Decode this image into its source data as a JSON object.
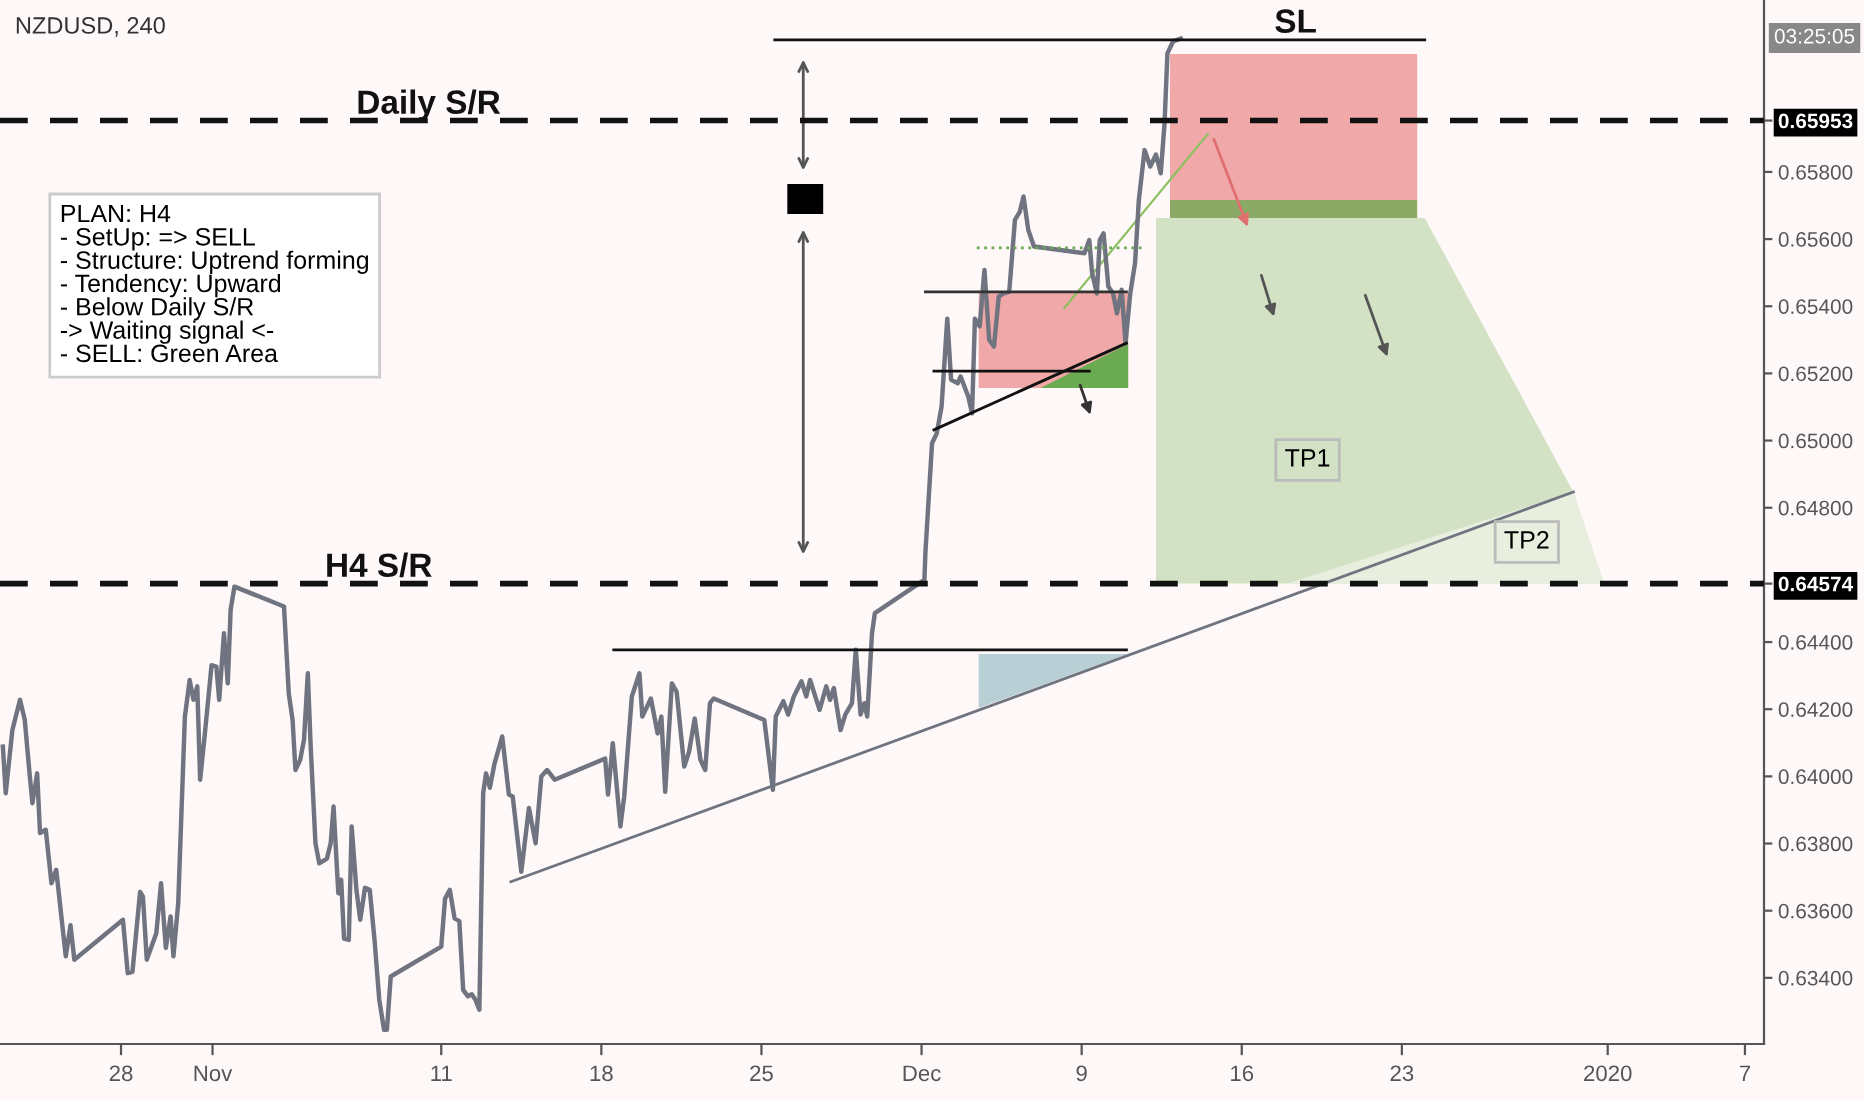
{
  "chart_data": {
    "type": "line",
    "title": "NZDUSD, 240",
    "xlim": [
      "2019-10-22T17:00",
      "2020-01-07T20:00"
    ],
    "ylim": [
      0.63203,
      0.66312
    ],
    "xticks": [
      {
        "value": "2019-10-28",
        "label": "28"
      },
      {
        "value": "2019-11-01",
        "label": "Nov"
      },
      {
        "value": "2019-11-11",
        "label": "11"
      },
      {
        "value": "2019-11-18",
        "label": "18"
      },
      {
        "value": "2019-11-25",
        "label": "25"
      },
      {
        "value": "2019-12-02",
        "label": "Dec"
      },
      {
        "value": "2019-12-09",
        "label": "9"
      },
      {
        "value": "2019-12-16",
        "label": "16"
      },
      {
        "value": "2019-12-23",
        "label": "23"
      },
      {
        "value": "2020-01-01",
        "label": "2020"
      },
      {
        "value": "2020-01-07",
        "label": "7"
      }
    ],
    "yticks": [
      {
        "value": 0.634,
        "label": "0.63400"
      },
      {
        "value": 0.636,
        "label": "0.63600"
      },
      {
        "value": 0.638,
        "label": "0.63800"
      },
      {
        "value": 0.64,
        "label": "0.64000"
      },
      {
        "value": 0.642,
        "label": "0.64200"
      },
      {
        "value": 0.644,
        "label": "0.64400"
      },
      {
        "value": 0.64574,
        "label": "0.64574"
      },
      {
        "value": 0.648,
        "label": "0.64800"
      },
      {
        "value": 0.65,
        "label": "0.65000"
      },
      {
        "value": 0.652,
        "label": "0.65200"
      },
      {
        "value": 0.654,
        "label": "0.65400"
      },
      {
        "value": 0.656,
        "label": "0.65600"
      },
      {
        "value": 0.658,
        "label": "0.65800"
      },
      {
        "value": 0.65953,
        "label": "0.65953"
      }
    ],
    "grid": false,
    "legend": false,
    "marker": "none",
    "line_style": "solid",
    "ref_lines": [
      {
        "axis": "y",
        "value": 0.65953,
        "label": "Daily S/R",
        "color": "#111111",
        "line_style": "dashed"
      },
      {
        "axis": "y",
        "value": 0.64574,
        "label": "H4 S/R",
        "color": "#111111",
        "line_style": "dashed"
      }
    ],
    "annotations": [
      "PLAN: H4\n- SetUp: => SELL\n- Structure: Uptrend forming\n- Tendency: Upward\n- Below Daily S/R\n-> Waiting signal <-\n- SELL: Green Area",
      "SL",
      "TP1",
      "TP2",
      "03:25:05"
    ],
    "series": [
      {
        "color": "#6f7480",
        "x": [
          "2019-10-22T20:00",
          "2019-10-22T23:00",
          "2019-10-23T06:00",
          "2019-10-23T14:00",
          "2019-10-23T19:00",
          "2019-10-24T00:00",
          "2019-10-24T03:00",
          "2019-10-24T08:00",
          "2019-10-24T11:00",
          "2019-10-24T17:00",
          "2019-10-24T23:00",
          "2019-10-25T04:00",
          "2019-10-25T14:00",
          "2019-10-25T19:00",
          "2019-10-25T23:00",
          "2019-10-28T02:00",
          "2019-10-28T07:00",
          "2019-10-28T12:00",
          "2019-10-28T20:00",
          "2019-10-28T23:00",
          "2019-10-29T03:00",
          "2019-10-29T13:00",
          "2019-10-29T18:00",
          "2019-10-29T23:00",
          "2019-10-30T04:00",
          "2019-10-30T07:00",
          "2019-10-30T12:00",
          "2019-10-30T19:00",
          "2019-10-31T00:00",
          "2019-10-31T04:00",
          "2019-10-31T08:00",
          "2019-10-31T11:00",
          "2019-10-31T16:00",
          "2019-10-31T23:00",
          "2019-11-01T04:00",
          "2019-11-01T07:00",
          "2019-11-01T12:00",
          "2019-11-01T16:00",
          "2019-11-01T19:00",
          "2019-11-01T23:00",
          "2019-11-04T03:00",
          "2019-11-04T08:00",
          "2019-11-04T12:00",
          "2019-11-04T15:00",
          "2019-11-04T20:00",
          "2019-11-05T00:00",
          "2019-11-05T04:00",
          "2019-11-05T07:00",
          "2019-11-05T12:00",
          "2019-11-05T16:00",
          "2019-11-06T00:00",
          "2019-11-06T04:00",
          "2019-11-06T07:00",
          "2019-11-06T12:00",
          "2019-11-06T15:00",
          "2019-11-06T18:00",
          "2019-11-06T23:00",
          "2019-11-07T02:00",
          "2019-11-07T07:00",
          "2019-11-07T11:00",
          "2019-11-07T16:00",
          "2019-11-07T21:00",
          "2019-11-08T02:00",
          "2019-11-08T07:00",
          "2019-11-08T12:00",
          "2019-11-08T15:00",
          "2019-11-08T19:00",
          "2019-11-11T00:00",
          "2019-11-11T04:00",
          "2019-11-11T09:00",
          "2019-11-11T14:00",
          "2019-11-11T19:00",
          "2019-11-11T23:00",
          "2019-11-12T04:00",
          "2019-11-12T08:00",
          "2019-11-12T12:00",
          "2019-11-12T16:00",
          "2019-11-12T20:00",
          "2019-11-12T23:00",
          "2019-11-13T03:00",
          "2019-11-13T08:00",
          "2019-11-13T16:00",
          "2019-11-13T23:00",
          "2019-11-14T03:00",
          "2019-11-14T12:00",
          "2019-11-14T20:00",
          "2019-11-15T03:00",
          "2019-11-15T09:00",
          "2019-11-15T15:00",
          "2019-11-15T23:00",
          "2019-11-18T04:00",
          "2019-11-18T07:00",
          "2019-11-18T12:00",
          "2019-11-18T20:00",
          "2019-11-19T00:00",
          "2019-11-19T08:00",
          "2019-11-19T16:00",
          "2019-11-19T19:00",
          "2019-11-20T04:00",
          "2019-11-20T11:00",
          "2019-11-20T15:00",
          "2019-11-20T19:00",
          "2019-11-21T02:00",
          "2019-11-21T07:00",
          "2019-11-21T15:00",
          "2019-11-21T20:00",
          "2019-11-22T02:00",
          "2019-11-22T08:00",
          "2019-11-22T13:00",
          "2019-11-22T18:00",
          "2019-11-22T22:00",
          "2019-11-25T03:00",
          "2019-11-25T12:00",
          "2019-11-25T15:00",
          "2019-11-25T23:00",
          "2019-11-26T04:00",
          "2019-11-26T10:00",
          "2019-11-26T18:00",
          "2019-11-26T23:00",
          "2019-11-27T03:00",
          "2019-11-27T13:00",
          "2019-11-27T20:00",
          "2019-11-28T00:00",
          "2019-11-28T04:00",
          "2019-11-28T11:00",
          "2019-11-28T16:00",
          "2019-11-28T23:00",
          "2019-11-29T03:00",
          "2019-11-29T08:00",
          "2019-11-29T12:00",
          "2019-11-29T15:00",
          "2019-11-29T20:00",
          "2019-11-29T23:00",
          "2019-12-02T03:00",
          "2019-12-02T04:00",
          "2019-12-02T11:00",
          "2019-12-02T16:00",
          "2019-12-02T21:00",
          "2019-12-03T03:00",
          "2019-12-03T07:00",
          "2019-12-03T14:00",
          "2019-12-03T17:00",
          "2019-12-04T01:00",
          "2019-12-04T05:00",
          "2019-12-04T08:00",
          "2019-12-04T13:00",
          "2019-12-04T18:00",
          "2019-12-04T23:00",
          "2019-12-05T04:00",
          "2019-12-05T09:00",
          "2019-12-05T14:00",
          "2019-12-05T20:00",
          "2019-12-06T02:00",
          "2019-12-06T07:00",
          "2019-12-06T11:00",
          "2019-12-06T16:00",
          "2019-12-06T22:00",
          "2019-12-09T03:00",
          "2019-12-09T08:00",
          "2019-12-09T11:00",
          "2019-12-09T16:00",
          "2019-12-09T19:00",
          "2019-12-09T23:00",
          "2019-12-10T04:00",
          "2019-12-10T09:00",
          "2019-12-10T13:00",
          "2019-12-10T18:00",
          "2019-12-10T22:00",
          "2019-12-11T03:00",
          "2019-12-11T08:00",
          "2019-12-11T12:00",
          "2019-12-11T18:00",
          "2019-12-12T00:00",
          "2019-12-12T06:00",
          "2019-12-12T11:00",
          "2019-12-12T15:00",
          "2019-12-12T18:00",
          "2019-12-13T00:00",
          "2019-12-13T08:00"
        ],
        "values": [
          0.64089,
          0.6395,
          0.64138,
          0.64228,
          0.64168,
          0.64009,
          0.6392,
          0.64009,
          0.63831,
          0.63841,
          0.63682,
          0.63722,
          0.63464,
          0.63557,
          0.63454,
          0.63573,
          0.63414,
          0.63418,
          0.63656,
          0.63642,
          0.63454,
          0.63533,
          0.63682,
          0.63489,
          0.63583,
          0.63464,
          0.63622,
          0.64178,
          0.64287,
          0.64228,
          0.64268,
          0.6399,
          0.64128,
          0.64331,
          0.64327,
          0.64228,
          0.64426,
          0.64277,
          0.64496,
          0.64565,
          0.64506,
          0.64247,
          0.64168,
          0.64019,
          0.64049,
          0.64109,
          0.64307,
          0.64089,
          0.63801,
          0.63741,
          0.63755,
          0.63801,
          0.6391,
          0.63652,
          0.63692,
          0.63517,
          0.63513,
          0.63851,
          0.63662,
          0.63573,
          0.63668,
          0.63662,
          0.63513,
          0.63334,
          0.63245,
          0.63245,
          0.63404,
          0.63493,
          0.63636,
          0.63662,
          0.63577,
          0.63569,
          0.63364,
          0.63345,
          0.63351,
          0.63334,
          0.63305,
          0.6395,
          0.64009,
          0.63966,
          0.64039,
          0.64119,
          0.63946,
          0.6394,
          0.63716,
          0.63906,
          0.63801,
          0.64,
          0.64019,
          0.6399,
          0.64053,
          0.63946,
          0.64099,
          0.63851,
          0.6394,
          0.64238,
          0.64307,
          0.64178,
          0.64232,
          0.64128,
          0.64178,
          0.63954,
          0.64277,
          0.64252,
          0.64029,
          0.64073,
          0.64172,
          0.64049,
          0.64019,
          0.64218,
          0.64232,
          0.64168,
          0.6396,
          0.64178,
          0.64224,
          0.64184,
          0.64238,
          0.64283,
          0.64238,
          0.64287,
          0.64198,
          0.64268,
          0.64228,
          0.64263,
          0.64138,
          0.64184,
          0.64218,
          0.64377,
          0.64184,
          0.64218,
          0.64178,
          0.64426,
          0.64486,
          0.64585,
          0.64664,
          0.64992,
          0.65022,
          0.65101,
          0.65363,
          0.65181,
          0.65171,
          0.65191,
          0.65131,
          0.65081,
          0.65363,
          0.6534,
          0.65508,
          0.653,
          0.6528,
          0.65429,
          0.65438,
          0.65443,
          0.65657,
          0.65681,
          0.65727,
          0.65627,
          0.65578,
          0.65558,
          0.65597,
          0.65498,
          0.65438,
          0.65597,
          0.65617,
          0.65459,
          0.65438,
          0.65379,
          0.65449,
          0.6529,
          0.65438,
          0.65528,
          0.65716,
          0.65865,
          0.65816,
          0.65852,
          0.65796,
          0.65945,
          0.66153,
          0.66189,
          0.66197
        ]
      },
      {
        "color": "#6f7480",
        "x": [
          "2019-11-14T01:00",
          "2019-12-30T12:00"
        ],
        "values": [
          0.63686,
          0.64847
        ]
      },
      {
        "color": "#111111",
        "x": [
          "2019-11-25T14:00",
          "2019-12-24T00:00"
        ],
        "values": [
          0.66193,
          0.66193
        ]
      },
      {
        "color": "#111111",
        "x": [
          "2019-11-18T13:00",
          "2019-12-10T23:00"
        ],
        "values": [
          0.64377,
          0.64377
        ]
      },
      {
        "color": "#333333",
        "x": [
          "2019-12-02T04:00",
          "2019-12-10T23:00"
        ],
        "values": [
          0.65443,
          0.65443
        ]
      },
      {
        "color": "#111111",
        "x": [
          "2019-12-02T13:00",
          "2019-12-09T08:00"
        ],
        "values": [
          0.65207,
          0.65207
        ]
      },
      {
        "color": "#111111",
        "x": [
          "2019-12-02T13:00",
          "2019-12-10T23:00"
        ],
        "values": [
          0.65032,
          0.6529
        ]
      },
      {
        "color": "#6aaa50",
        "line_style": "dotted",
        "x": [
          "2019-12-04T10:00",
          "2019-12-11T17:00"
        ],
        "values": [
          0.65574,
          0.65574
        ]
      },
      {
        "type": "area",
        "color": "#d3e2c5",
        "x": [
          "2019-12-12T06:00",
          "2019-12-24T00:00",
          "2019-12-30T12:00",
          "2019-12-31T20:00"
        ],
        "values": [
          0.65663,
          0.65663,
          0.64847,
          0.64574
        ]
      },
      {
        "type": "area",
        "color": "#e8efdf",
        "x": [
          "2019-12-18T00:00",
          "2019-12-30T12:00",
          "2019-12-31T20:00"
        ],
        "values": [
          0.64574,
          0.64847,
          0.64574
        ]
      }
    ]
  }
}
